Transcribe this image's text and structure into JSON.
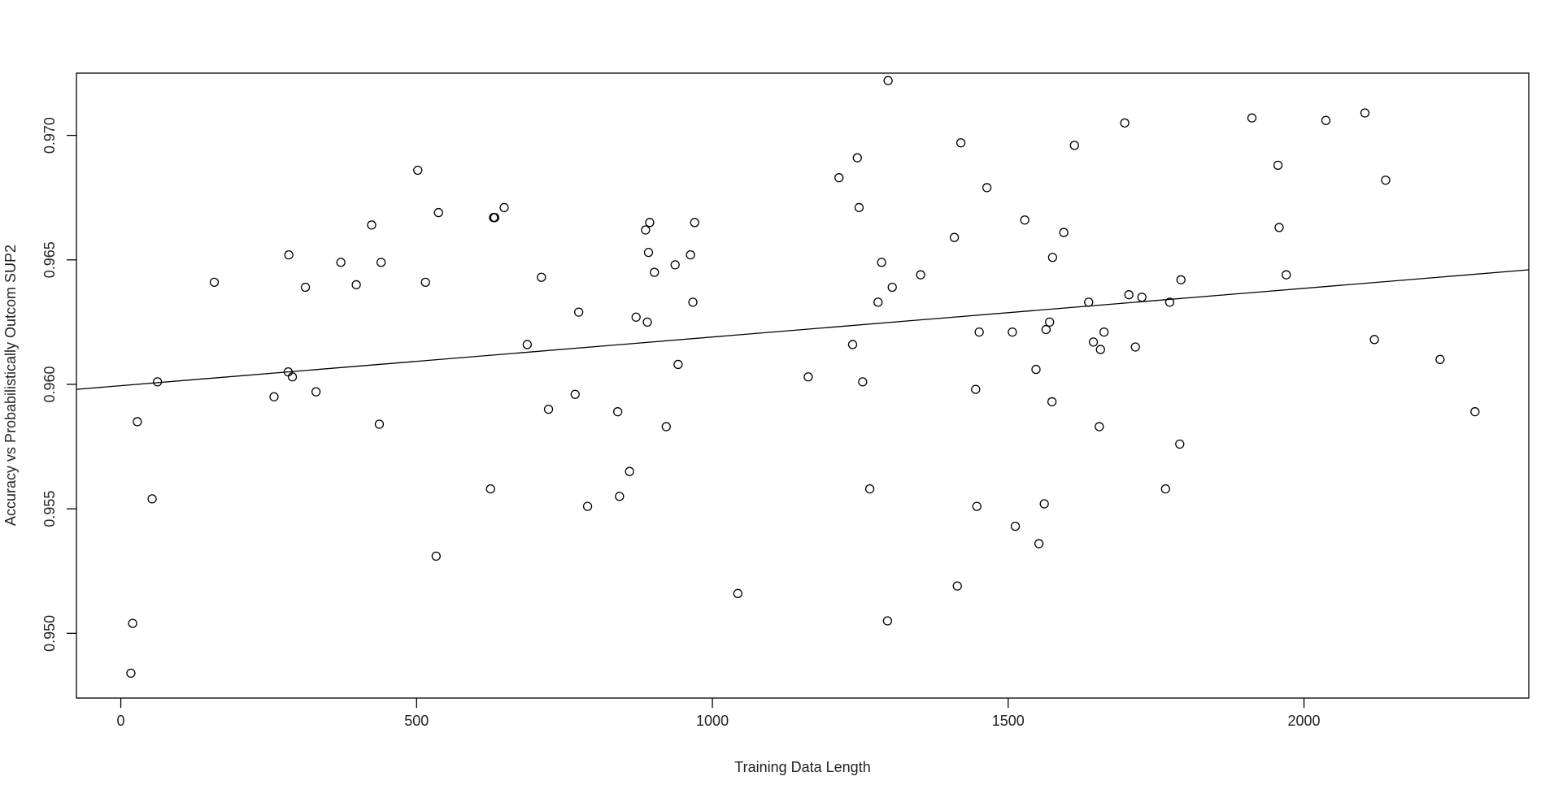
{
  "chart_data": {
    "type": "scatter",
    "title": "",
    "xlabel": "Training Data Length",
    "ylabel": "Accuracy vs Probabilistically Outcom SUP2",
    "xlim": [
      -75,
      2380
    ],
    "ylim": [
      0.9474,
      0.9725
    ],
    "xticks": [
      0,
      500,
      1000,
      1500,
      2000
    ],
    "yticks": [
      0.95,
      0.955,
      0.96,
      0.965,
      0.97
    ],
    "xtick_labels": [
      "0",
      "500",
      "1000",
      "1500",
      "2000"
    ],
    "ytick_labels": [
      "0.950",
      "0.955",
      "0.960",
      "0.965",
      "0.970"
    ],
    "grid": false,
    "point_style": "open-circle",
    "trendline": {
      "type": "linear",
      "x": [
        -75,
        2380
      ],
      "y": [
        0.9598,
        0.9646
      ]
    },
    "points": [
      [
        17,
        0.9484
      ],
      [
        20,
        0.9504
      ],
      [
        28,
        0.9585
      ],
      [
        53,
        0.9554
      ],
      [
        62,
        0.9601
      ],
      [
        158,
        0.9641
      ],
      [
        259,
        0.9595
      ],
      [
        283,
        0.9605
      ],
      [
        284,
        0.9652
      ],
      [
        290,
        0.9603
      ],
      [
        312,
        0.9639
      ],
      [
        330,
        0.9597
      ],
      [
        372,
        0.9649
      ],
      [
        398,
        0.964
      ],
      [
        424,
        0.9664
      ],
      [
        437,
        0.9584
      ],
      [
        440,
        0.9649
      ],
      [
        502,
        0.9686
      ],
      [
        515,
        0.9641
      ],
      [
        533,
        0.9531
      ],
      [
        537,
        0.9669
      ],
      [
        625,
        0.9558
      ],
      [
        630,
        0.9667
      ],
      [
        632,
        0.9667
      ],
      [
        648,
        0.9671
      ],
      [
        687,
        0.9616
      ],
      [
        711,
        0.9643
      ],
      [
        723,
        0.959
      ],
      [
        768,
        0.9596
      ],
      [
        774,
        0.9629
      ],
      [
        789,
        0.9551
      ],
      [
        840,
        0.9589
      ],
      [
        843,
        0.9555
      ],
      [
        860,
        0.9565
      ],
      [
        871,
        0.9627
      ],
      [
        887,
        0.9662
      ],
      [
        890,
        0.9625
      ],
      [
        892,
        0.9653
      ],
      [
        894,
        0.9665
      ],
      [
        902,
        0.9645
      ],
      [
        922,
        0.9583
      ],
      [
        937,
        0.9648
      ],
      [
        942,
        0.9608
      ],
      [
        963,
        0.9652
      ],
      [
        967,
        0.9633
      ],
      [
        970,
        0.9665
      ],
      [
        1043,
        0.9516
      ],
      [
        1162,
        0.9603
      ],
      [
        1214,
        0.9683
      ],
      [
        1237,
        0.9616
      ],
      [
        1245,
        0.9691
      ],
      [
        1248,
        0.9671
      ],
      [
        1254,
        0.9601
      ],
      [
        1266,
        0.9558
      ],
      [
        1280,
        0.9633
      ],
      [
        1286,
        0.9649
      ],
      [
        1296,
        0.9505
      ],
      [
        1297,
        0.9722
      ],
      [
        1304,
        0.9639
      ],
      [
        1352,
        0.9644
      ],
      [
        1409,
        0.9659
      ],
      [
        1414,
        0.9519
      ],
      [
        1420,
        0.9697
      ],
      [
        1445,
        0.9598
      ],
      [
        1447,
        0.9551
      ],
      [
        1451,
        0.9621
      ],
      [
        1464,
        0.9679
      ],
      [
        1507,
        0.9621
      ],
      [
        1512,
        0.9543
      ],
      [
        1528,
        0.9666
      ],
      [
        1547,
        0.9606
      ],
      [
        1552,
        0.9536
      ],
      [
        1561,
        0.9552
      ],
      [
        1564,
        0.9622
      ],
      [
        1570,
        0.9625
      ],
      [
        1574,
        0.9593
      ],
      [
        1575,
        0.9651
      ],
      [
        1594,
        0.9661
      ],
      [
        1612,
        0.9696
      ],
      [
        1636,
        0.9633
      ],
      [
        1644,
        0.9617
      ],
      [
        1654,
        0.9583
      ],
      [
        1656,
        0.9614
      ],
      [
        1662,
        0.9621
      ],
      [
        1697,
        0.9705
      ],
      [
        1704,
        0.9636
      ],
      [
        1715,
        0.9615
      ],
      [
        1726,
        0.9635
      ],
      [
        1766,
        0.9558
      ],
      [
        1773,
        0.9633
      ],
      [
        1790,
        0.9576
      ],
      [
        1792,
        0.9642
      ],
      [
        1912,
        0.9707
      ],
      [
        1956,
        0.9688
      ],
      [
        1958,
        0.9663
      ],
      [
        1970,
        0.9644
      ],
      [
        2037,
        0.9706
      ],
      [
        2103,
        0.9709
      ],
      [
        2119,
        0.9618
      ],
      [
        2138,
        0.9682
      ],
      [
        2230,
        0.961
      ],
      [
        2289,
        0.9589
      ]
    ]
  }
}
